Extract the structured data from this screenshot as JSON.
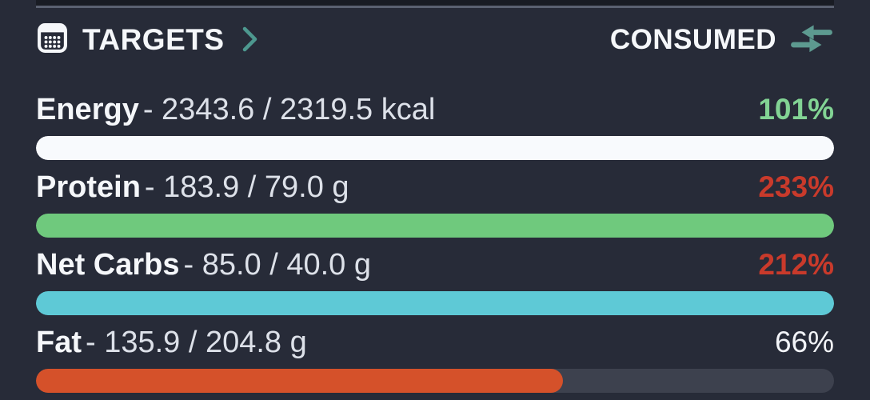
{
  "header": {
    "title": "TARGETS",
    "consumed_label": "CONSUMED"
  },
  "colors": {
    "background": "#272b38",
    "bar_track": "#3d414e",
    "accent_teal": "#4d988f",
    "swap_icon_teal": "#5d9a90",
    "over_target_red": "#c93a2b",
    "on_target_green": "#82d394"
  },
  "targets": [
    {
      "label": "Energy",
      "value_text": "- 2343.6 / 2319.5 kcal",
      "percent": "101%",
      "percent_color": "#82d394",
      "percent_bold": true,
      "bar_color": "#f8fafd",
      "fill_percent": 100
    },
    {
      "label": "Protein",
      "value_text": "- 183.9 / 79.0 g",
      "percent": "233%",
      "percent_color": "#c93a2b",
      "percent_bold": true,
      "bar_color": "#6fc97d",
      "fill_percent": 100
    },
    {
      "label": "Net Carbs",
      "value_text": "- 85.0 / 40.0 g",
      "percent": "212%",
      "percent_color": "#c93a2b",
      "percent_bold": true,
      "bar_color": "#5ec9d6",
      "fill_percent": 100
    },
    {
      "label": "Fat",
      "value_text": "- 135.9 / 204.8 g",
      "percent": "66%",
      "percent_color": "#f2f4f8",
      "percent_bold": false,
      "bar_color": "#d5512a",
      "fill_percent": 66
    }
  ]
}
